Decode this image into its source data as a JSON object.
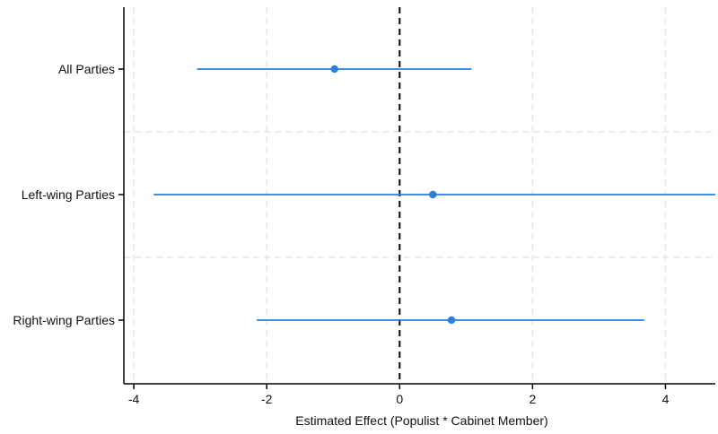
{
  "chart_data": {
    "type": "scatter",
    "title": "",
    "xlabel": "Estimated Effect (Populist * Cabinet Member)",
    "ylabel": "",
    "xlim": [
      -4.15,
      4.75
    ],
    "xticks": [
      -4,
      -2,
      0,
      2,
      4
    ],
    "xtick_labels": [
      "-4",
      "-2",
      "0",
      "2",
      "4"
    ],
    "categories": [
      "All Parties",
      "Left-wing Parties",
      "Right-wing Parties"
    ],
    "series": [
      {
        "points": [
          {
            "category": "All Parties",
            "estimate": -0.98,
            "ci_low": -3.05,
            "ci_high": 1.08
          },
          {
            "category": "Left-wing Parties",
            "estimate": 0.5,
            "ci_low": -3.7,
            "ci_high": 4.75
          },
          {
            "category": "Right-wing Parties",
            "estimate": 0.78,
            "ci_low": -2.15,
            "ci_high": 3.68
          }
        ]
      }
    ],
    "reference_line": {
      "x": 0,
      "style": "dashed",
      "color": "#000000"
    },
    "grid": true,
    "colors": {
      "series": "#2a7fe0",
      "grid": "#e6e6e6",
      "axis": "#000000"
    }
  }
}
